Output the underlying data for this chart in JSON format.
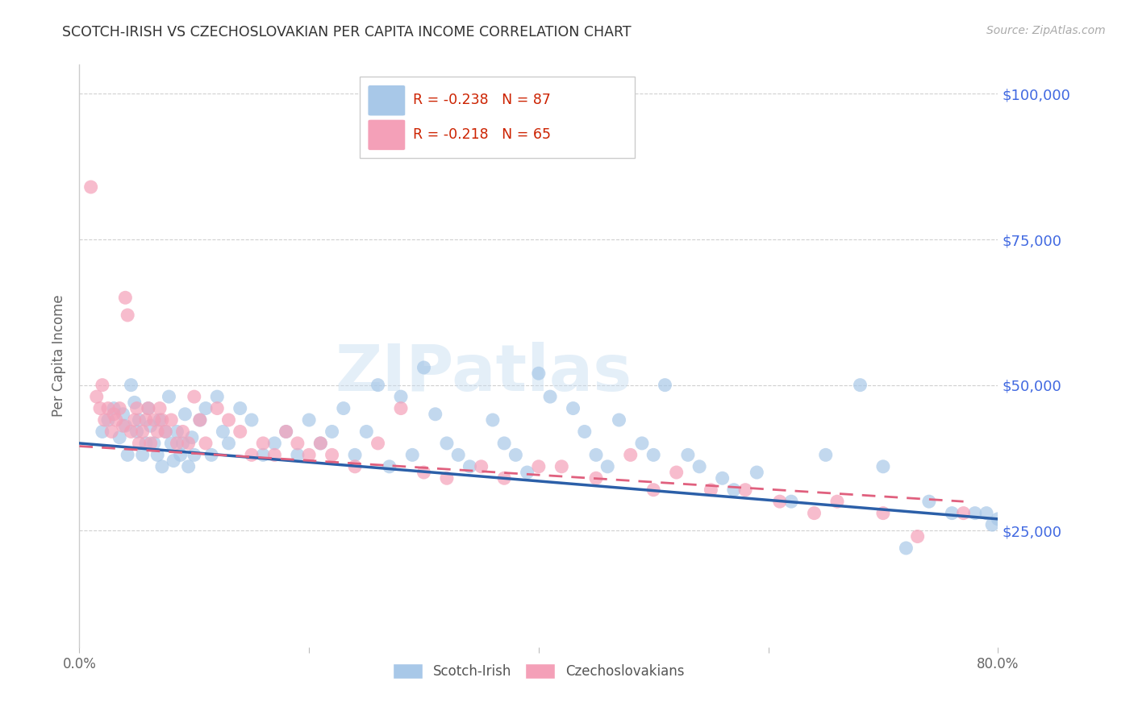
{
  "title": "SCOTCH-IRISH VS CZECHOSLOVAKIAN PER CAPITA INCOME CORRELATION CHART",
  "source": "Source: ZipAtlas.com",
  "ylabel": "Per Capita Income",
  "watermark": "ZIPatlas",
  "xlim": [
    0.0,
    0.8
  ],
  "ylim": [
    5000,
    105000
  ],
  "ytick_vals": [
    25000,
    50000,
    75000,
    100000
  ],
  "ytick_labels": [
    "$25,000",
    "$50,000",
    "$75,000",
    "$100,000"
  ],
  "blue_R": -0.238,
  "blue_N": 87,
  "pink_R": -0.218,
  "pink_N": 65,
  "blue_color": "#a8c8e8",
  "pink_color": "#f4a0b8",
  "blue_line_color": "#2b5fa8",
  "pink_line_color": "#e0607e",
  "legend_label_blue": "Scotch-Irish",
  "legend_label_pink": "Czechoslovakians",
  "background_color": "#ffffff",
  "grid_color": "#d0d0d0",
  "ytick_color": "#4169e1",
  "title_color": "#333333",
  "blue_x": [
    0.02,
    0.025,
    0.03,
    0.035,
    0.038,
    0.04,
    0.042,
    0.045,
    0.048,
    0.05,
    0.052,
    0.055,
    0.058,
    0.06,
    0.062,
    0.065,
    0.068,
    0.07,
    0.072,
    0.075,
    0.078,
    0.08,
    0.082,
    0.085,
    0.088,
    0.09,
    0.092,
    0.095,
    0.098,
    0.1,
    0.105,
    0.11,
    0.115,
    0.12,
    0.125,
    0.13,
    0.14,
    0.15,
    0.16,
    0.17,
    0.18,
    0.19,
    0.2,
    0.21,
    0.22,
    0.23,
    0.24,
    0.25,
    0.26,
    0.27,
    0.28,
    0.29,
    0.3,
    0.31,
    0.32,
    0.33,
    0.34,
    0.36,
    0.37,
    0.38,
    0.39,
    0.4,
    0.41,
    0.43,
    0.44,
    0.45,
    0.46,
    0.47,
    0.49,
    0.5,
    0.51,
    0.53,
    0.54,
    0.56,
    0.57,
    0.59,
    0.62,
    0.65,
    0.68,
    0.7,
    0.72,
    0.74,
    0.76,
    0.78,
    0.79,
    0.795,
    0.8
  ],
  "blue_y": [
    42000,
    44000,
    46000,
    41000,
    45000,
    43000,
    38000,
    50000,
    47000,
    42000,
    44000,
    38000,
    40000,
    46000,
    43000,
    40000,
    38000,
    44000,
    36000,
    42000,
    48000,
    40000,
    37000,
    42000,
    38000,
    40000,
    45000,
    36000,
    41000,
    38000,
    44000,
    46000,
    38000,
    48000,
    42000,
    40000,
    46000,
    44000,
    38000,
    40000,
    42000,
    38000,
    44000,
    40000,
    42000,
    46000,
    38000,
    42000,
    50000,
    36000,
    48000,
    38000,
    53000,
    45000,
    40000,
    38000,
    36000,
    44000,
    40000,
    38000,
    35000,
    52000,
    48000,
    46000,
    42000,
    38000,
    36000,
    44000,
    40000,
    38000,
    50000,
    38000,
    36000,
    34000,
    32000,
    35000,
    30000,
    38000,
    50000,
    36000,
    22000,
    30000,
    28000,
    28000,
    28000,
    26000,
    27000
  ],
  "pink_x": [
    0.01,
    0.015,
    0.018,
    0.02,
    0.022,
    0.025,
    0.028,
    0.03,
    0.032,
    0.035,
    0.038,
    0.04,
    0.042,
    0.045,
    0.048,
    0.05,
    0.052,
    0.055,
    0.058,
    0.06,
    0.062,
    0.065,
    0.068,
    0.07,
    0.072,
    0.075,
    0.08,
    0.085,
    0.09,
    0.095,
    0.1,
    0.105,
    0.11,
    0.12,
    0.13,
    0.14,
    0.15,
    0.16,
    0.17,
    0.18,
    0.19,
    0.2,
    0.21,
    0.22,
    0.24,
    0.26,
    0.28,
    0.3,
    0.32,
    0.35,
    0.37,
    0.4,
    0.42,
    0.45,
    0.48,
    0.5,
    0.52,
    0.55,
    0.58,
    0.61,
    0.64,
    0.66,
    0.7,
    0.73,
    0.77
  ],
  "pink_y": [
    84000,
    48000,
    46000,
    50000,
    44000,
    46000,
    42000,
    45000,
    44000,
    46000,
    43000,
    65000,
    62000,
    42000,
    44000,
    46000,
    40000,
    42000,
    44000,
    46000,
    40000,
    44000,
    42000,
    46000,
    44000,
    42000,
    44000,
    40000,
    42000,
    40000,
    48000,
    44000,
    40000,
    46000,
    44000,
    42000,
    38000,
    40000,
    38000,
    42000,
    40000,
    38000,
    40000,
    38000,
    36000,
    40000,
    46000,
    35000,
    34000,
    36000,
    34000,
    36000,
    36000,
    34000,
    38000,
    32000,
    35000,
    32000,
    32000,
    30000,
    28000,
    30000,
    28000,
    24000,
    28000
  ]
}
